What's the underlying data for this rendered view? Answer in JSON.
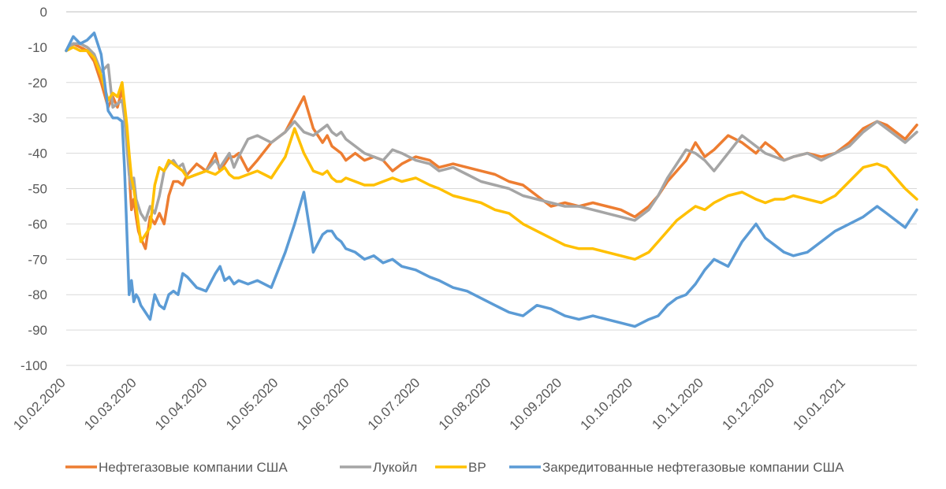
{
  "chart_data": {
    "type": "line",
    "title": "",
    "xlabel": "",
    "ylabel": "",
    "ylim": [
      -100,
      0
    ],
    "yticks": [
      0,
      -10,
      -20,
      -30,
      -40,
      -50,
      -60,
      -70,
      -80,
      -90,
      -100
    ],
    "yticklabels": [
      "0",
      "-10",
      "-20",
      "-30",
      "-40",
      "-50",
      "-60",
      "-70",
      "-80",
      "-90",
      "-100"
    ],
    "xticklabels": [
      "10.02.2020",
      "10.03.2020",
      "10.04.2020",
      "10.05.2020",
      "10.06.2020",
      "10.07.2020",
      "10.08.2020",
      "10.09.2020",
      "10.10.2020",
      "10.11.2020",
      "10.12.2020",
      "10.01.2021"
    ],
    "x_range_days": [
      0,
      365
    ],
    "grid": true,
    "legend_position": "bottom",
    "series": [
      {
        "name": "Нефтегазовые компании США",
        "color": "#ED7D31",
        "x": [
          0,
          3,
          6,
          9,
          12,
          15,
          18,
          20,
          22,
          24,
          25,
          26,
          27,
          28,
          29,
          30,
          31,
          32,
          34,
          36,
          38,
          40,
          42,
          44,
          46,
          48,
          50,
          52,
          56,
          60,
          64,
          66,
          68,
          70,
          72,
          74,
          78,
          82,
          88,
          94,
          98,
          102,
          106,
          110,
          112,
          114,
          116,
          118,
          120,
          124,
          128,
          132,
          136,
          140,
          144,
          150,
          156,
          160,
          166,
          172,
          178,
          184,
          190,
          196,
          202,
          208,
          214,
          220,
          226,
          232,
          238,
          244,
          250,
          254,
          258,
          262,
          266,
          270,
          274,
          278,
          284,
          290,
          296,
          300,
          304,
          308,
          312,
          318,
          324,
          330,
          336,
          342,
          348,
          352,
          356,
          360,
          365
        ],
        "y": [
          -11,
          -9,
          -10,
          -11,
          -14,
          -20,
          -27,
          -24,
          -27,
          -22,
          -27,
          -35,
          -45,
          -56,
          -53,
          -58,
          -62,
          -64,
          -67,
          -58,
          -60,
          -57,
          -60,
          -52,
          -48,
          -48,
          -49,
          -46,
          -43,
          -45,
          -40,
          -45,
          -43,
          -41,
          -41,
          -40,
          -45,
          -42,
          -37,
          -34,
          -29,
          -24,
          -33,
          -37,
          -35,
          -38,
          -39,
          -40,
          -42,
          -40,
          -42,
          -41,
          -42,
          -45,
          -43,
          -41,
          -42,
          -44,
          -43,
          -44,
          -45,
          -46,
          -48,
          -49,
          -52,
          -55,
          -54,
          -55,
          -54,
          -55,
          -56,
          -58,
          -55,
          -52,
          -48,
          -45,
          -42,
          -37,
          -41,
          -39,
          -35,
          -37,
          -40,
          -37,
          -39,
          -42,
          -41,
          -40,
          -41,
          -40,
          -37,
          -33,
          -31,
          -32,
          -34,
          -36,
          -32
        ]
      },
      {
        "name": "Лукойл",
        "color": "#A5A5A5",
        "x": [
          0,
          3,
          6,
          9,
          12,
          15,
          18,
          20,
          22,
          24,
          25,
          26,
          27,
          28,
          29,
          30,
          31,
          32,
          34,
          36,
          38,
          40,
          42,
          44,
          46,
          48,
          50,
          52,
          56,
          60,
          64,
          66,
          68,
          70,
          72,
          74,
          78,
          82,
          88,
          94,
          98,
          102,
          106,
          110,
          112,
          114,
          116,
          118,
          120,
          124,
          128,
          132,
          136,
          140,
          144,
          150,
          156,
          160,
          166,
          172,
          178,
          184,
          190,
          196,
          202,
          208,
          214,
          220,
          226,
          232,
          238,
          244,
          250,
          254,
          258,
          262,
          266,
          270,
          274,
          278,
          284,
          290,
          296,
          300,
          304,
          308,
          312,
          318,
          324,
          330,
          336,
          342,
          348,
          352,
          356,
          360,
          365
        ],
        "y": [
          -11,
          -9,
          -9,
          -10,
          -12,
          -17,
          -15,
          -27,
          -26,
          -25,
          -30,
          -38,
          -46,
          -50,
          -47,
          -53,
          -55,
          -57,
          -59,
          -55,
          -57,
          -52,
          -45,
          -43,
          -42,
          -44,
          -43,
          -47,
          -46,
          -45,
          -42,
          -44,
          -42,
          -40,
          -44,
          -41,
          -36,
          -35,
          -37,
          -34,
          -31,
          -34,
          -35,
          -33,
          -32,
          -34,
          -35,
          -34,
          -36,
          -38,
          -40,
          -41,
          -42,
          -39,
          -40,
          -42,
          -43,
          -45,
          -44,
          -46,
          -48,
          -49,
          -50,
          -52,
          -53,
          -54,
          -55,
          -55,
          -56,
          -57,
          -58,
          -59,
          -56,
          -52,
          -47,
          -43,
          -39,
          -40,
          -42,
          -45,
          -40,
          -35,
          -38,
          -40,
          -41,
          -42,
          -41,
          -40,
          -42,
          -40,
          -38,
          -34,
          -31,
          -33,
          -35,
          -37,
          -34
        ]
      },
      {
        "name": "BP",
        "color": "#FFC000",
        "x": [
          0,
          3,
          6,
          9,
          12,
          15,
          18,
          20,
          22,
          24,
          25,
          26,
          27,
          28,
          29,
          30,
          31,
          32,
          34,
          36,
          38,
          40,
          42,
          44,
          46,
          48,
          50,
          52,
          56,
          60,
          64,
          66,
          68,
          70,
          72,
          74,
          78,
          82,
          88,
          94,
          98,
          102,
          106,
          110,
          112,
          114,
          116,
          118,
          120,
          124,
          128,
          132,
          136,
          140,
          144,
          150,
          156,
          160,
          166,
          172,
          178,
          184,
          190,
          196,
          202,
          208,
          214,
          220,
          226,
          232,
          238,
          244,
          250,
          254,
          258,
          262,
          266,
          270,
          274,
          278,
          284,
          290,
          296,
          300,
          304,
          308,
          312,
          318,
          324,
          330,
          336,
          342,
          348,
          352,
          356,
          360,
          365
        ],
        "y": [
          -11,
          -10,
          -11,
          -11,
          -13,
          -18,
          -25,
          -23,
          -24,
          -20,
          -26,
          -32,
          -40,
          -47,
          -50,
          -55,
          -60,
          -65,
          -63,
          -61,
          -49,
          -44,
          -45,
          -42,
          -43,
          -44,
          -45,
          -47,
          -46,
          -45,
          -46,
          -45,
          -44,
          -46,
          -47,
          -47,
          -46,
          -45,
          -47,
          -41,
          -33,
          -40,
          -45,
          -46,
          -45,
          -47,
          -48,
          -48,
          -47,
          -48,
          -49,
          -49,
          -48,
          -47,
          -48,
          -47,
          -49,
          -50,
          -52,
          -53,
          -54,
          -56,
          -57,
          -60,
          -62,
          -64,
          -66,
          -67,
          -67,
          -68,
          -69,
          -70,
          -68,
          -65,
          -62,
          -59,
          -57,
          -55,
          -56,
          -54,
          -52,
          -51,
          -53,
          -54,
          -53,
          -53,
          -52,
          -53,
          -54,
          -52,
          -48,
          -44,
          -43,
          -44,
          -47,
          -50,
          -53
        ]
      },
      {
        "name": "Закредитованные нефтегазовые компании США",
        "color": "#5B9BD5",
        "x": [
          0,
          3,
          6,
          9,
          12,
          15,
          18,
          20,
          22,
          24,
          25,
          26,
          27,
          28,
          29,
          30,
          31,
          32,
          34,
          36,
          38,
          40,
          42,
          44,
          46,
          48,
          50,
          52,
          56,
          60,
          64,
          66,
          68,
          70,
          72,
          74,
          78,
          82,
          88,
          94,
          98,
          102,
          106,
          110,
          112,
          114,
          116,
          118,
          120,
          124,
          128,
          132,
          136,
          140,
          144,
          150,
          156,
          160,
          166,
          172,
          178,
          184,
          190,
          196,
          202,
          208,
          214,
          220,
          226,
          232,
          238,
          244,
          250,
          254,
          258,
          262,
          266,
          270,
          274,
          278,
          284,
          290,
          296,
          300,
          304,
          308,
          312,
          318,
          324,
          330,
          336,
          342,
          348,
          352,
          356,
          360,
          365
        ],
        "y": [
          -11,
          -7,
          -9,
          -8,
          -6,
          -12,
          -28,
          -30,
          -30,
          -31,
          -44,
          -62,
          -80,
          -76,
          -82,
          -80,
          -81,
          -83,
          -85,
          -87,
          -80,
          -83,
          -84,
          -80,
          -79,
          -80,
          -74,
          -75,
          -78,
          -79,
          -74,
          -72,
          -76,
          -75,
          -77,
          -76,
          -77,
          -76,
          -78,
          -68,
          -60,
          -51,
          -68,
          -63,
          -62,
          -62,
          -64,
          -65,
          -67,
          -68,
          -70,
          -69,
          -71,
          -70,
          -72,
          -73,
          -75,
          -76,
          -78,
          -79,
          -81,
          -83,
          -85,
          -86,
          -83,
          -84,
          -86,
          -87,
          -86,
          -87,
          -88,
          -89,
          -87,
          -86,
          -83,
          -81,
          -80,
          -77,
          -73,
          -70,
          -72,
          -65,
          -60,
          -64,
          -66,
          -68,
          -69,
          -68,
          -65,
          -62,
          -60,
          -58,
          -55,
          -57,
          -59,
          -61,
          -56
        ]
      }
    ]
  }
}
